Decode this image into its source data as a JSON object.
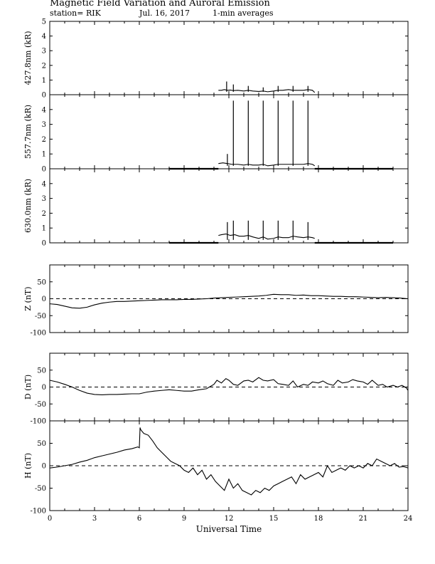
{
  "header": {
    "title": "Magnetic Field Variation and Auroral Emission",
    "station": "station= RIK",
    "date": "Jul. 16, 2017",
    "averaging": "1-min averages"
  },
  "chart_data": [
    {
      "type": "line",
      "ylabel": "427.8nm (kR)",
      "ylim": [
        0,
        5
      ],
      "yticks": [
        "0",
        "1",
        "2",
        "3",
        "4",
        "5"
      ],
      "dashed_zero": false,
      "series": [
        {
          "x": [
            11.3,
            11.5,
            11.7,
            11.9,
            12.1,
            12.3,
            12.6,
            13.0,
            13.3,
            13.6,
            14.0,
            14.3,
            14.6,
            15.0,
            15.3,
            15.6,
            16.0,
            16.3,
            16.6,
            17.0,
            17.3,
            17.6,
            17.75
          ],
          "y": [
            0.3,
            0.3,
            0.35,
            0.3,
            0.32,
            0.28,
            0.3,
            0.25,
            0.3,
            0.25,
            0.22,
            0.25,
            0.2,
            0.25,
            0.3,
            0.3,
            0.35,
            0.3,
            0.3,
            0.3,
            0.35,
            0.3,
            0.15
          ]
        }
      ],
      "spikes": [
        {
          "x": 11.85,
          "y": 0.9
        },
        {
          "x": 12.3,
          "y": 0.7
        },
        {
          "x": 13.3,
          "y": 0.6
        },
        {
          "x": 14.3,
          "y": 0.5
        },
        {
          "x": 15.3,
          "y": 0.6
        },
        {
          "x": 16.3,
          "y": 0.6
        },
        {
          "x": 17.3,
          "y": 0.6
        }
      ]
    },
    {
      "type": "line",
      "ylabel": "557.7nm (kR)",
      "ylim": [
        0,
        5
      ],
      "yticks": [
        "0",
        "1",
        "2",
        "3",
        "4"
      ],
      "dashed_zero": false,
      "flat_segments": [
        [
          8.0,
          11.3
        ],
        [
          17.75,
          23.0
        ]
      ],
      "series": [
        {
          "x": [
            11.3,
            11.6,
            11.9,
            12.2,
            12.6,
            13.0,
            13.3,
            13.6,
            14.0,
            14.3,
            14.6,
            15.0,
            15.3,
            15.6,
            16.0,
            16.3,
            16.6,
            17.0,
            17.3,
            17.6,
            17.75
          ],
          "y": [
            0.35,
            0.4,
            0.35,
            0.3,
            0.3,
            0.25,
            0.3,
            0.25,
            0.25,
            0.3,
            0.2,
            0.25,
            0.3,
            0.3,
            0.3,
            0.3,
            0.3,
            0.3,
            0.35,
            0.3,
            0.2
          ]
        }
      ],
      "spikes": [
        {
          "x": 11.9,
          "y": 1.0
        },
        {
          "x": 12.3,
          "y": 4.6
        },
        {
          "x": 13.3,
          "y": 4.6
        },
        {
          "x": 14.3,
          "y": 4.6
        },
        {
          "x": 15.3,
          "y": 4.6
        },
        {
          "x": 16.3,
          "y": 4.6
        },
        {
          "x": 17.3,
          "y": 4.6
        }
      ]
    },
    {
      "type": "line",
      "ylabel": "630.0nm (kR)",
      "ylim": [
        0,
        5
      ],
      "yticks": [
        "0",
        "1",
        "2",
        "3",
        "4"
      ],
      "dashed_zero": false,
      "flat_segments": [
        [
          8.0,
          11.3
        ],
        [
          17.75,
          23.0
        ]
      ],
      "series": [
        {
          "x": [
            11.3,
            11.5,
            11.8,
            12.1,
            12.4,
            12.7,
            13.0,
            13.3,
            13.6,
            14.0,
            14.3,
            14.6,
            15.0,
            15.3,
            15.6,
            16.0,
            16.3,
            16.6,
            17.0,
            17.3,
            17.6,
            17.75
          ],
          "y": [
            0.5,
            0.55,
            0.6,
            0.5,
            0.55,
            0.45,
            0.45,
            0.5,
            0.4,
            0.3,
            0.4,
            0.25,
            0.3,
            0.4,
            0.35,
            0.35,
            0.45,
            0.4,
            0.35,
            0.4,
            0.35,
            0.3
          ]
        }
      ],
      "spikes": [
        {
          "x": 11.9,
          "y": 1.4
        },
        {
          "x": 12.3,
          "y": 1.5
        },
        {
          "x": 13.3,
          "y": 1.5
        },
        {
          "x": 14.3,
          "y": 1.5
        },
        {
          "x": 15.3,
          "y": 1.5
        },
        {
          "x": 16.3,
          "y": 1.5
        },
        {
          "x": 17.3,
          "y": 1.4
        }
      ]
    },
    {
      "type": "line",
      "ylabel": "Z (nT)",
      "ylim": [
        -100,
        100
      ],
      "yticks": [
        "-100",
        "-50",
        "0",
        "50"
      ],
      "dashed_zero": true,
      "series": [
        {
          "x": [
            0,
            0.5,
            1,
            1.5,
            2,
            2.5,
            3,
            3.5,
            4,
            4.5,
            5,
            5.5,
            6,
            6.5,
            7,
            7.5,
            8,
            8.5,
            9,
            9.5,
            10,
            10.5,
            11,
            11.5,
            12,
            12.5,
            13,
            13.5,
            14,
            14.5,
            15,
            15.5,
            16,
            16.5,
            17,
            17.5,
            18,
            18.5,
            19,
            19.5,
            20,
            20.5,
            21,
            21.5,
            22,
            22.5,
            23,
            23.5,
            24
          ],
          "y": [
            -15,
            -17,
            -22,
            -27,
            -28,
            -25,
            -18,
            -13,
            -10,
            -8,
            -8,
            -7,
            -6,
            -5,
            -4,
            -3,
            -3,
            -3,
            -2,
            -2,
            -1,
            0,
            2,
            3,
            4,
            5,
            6,
            7,
            8,
            10,
            13,
            12,
            12,
            10,
            11,
            9,
            9,
            8,
            7,
            7,
            6,
            6,
            5,
            4,
            3,
            4,
            3,
            2,
            0
          ]
        }
      ]
    },
    {
      "type": "line",
      "ylabel": "D (nT)",
      "ylim": [
        -100,
        100
      ],
      "yticks": [
        "-100",
        "-50",
        "0",
        "50"
      ],
      "dashed_zero": true,
      "series": [
        {
          "x": [
            0,
            0.5,
            1,
            1.5,
            2,
            2.5,
            3,
            3.5,
            4,
            4.5,
            5,
            5.5,
            6,
            6.5,
            7,
            7.5,
            8,
            8.5,
            9,
            9.5,
            10,
            10.5,
            11,
            11.2,
            11.5,
            11.8,
            12,
            12.3,
            12.6,
            13,
            13.3,
            13.6,
            14,
            14.3,
            14.6,
            15,
            15.3,
            15.6,
            16,
            16.3,
            16.6,
            17,
            17.3,
            17.6,
            18,
            18.3,
            18.6,
            19,
            19.3,
            19.6,
            20,
            20.3,
            20.6,
            21,
            21.3,
            21.6,
            22,
            22.3,
            22.6,
            23,
            23.3,
            23.6,
            23.9,
            24
          ],
          "y": [
            20,
            15,
            8,
            0,
            -10,
            -18,
            -22,
            -23,
            -22,
            -22,
            -21,
            -20,
            -20,
            -15,
            -12,
            -10,
            -8,
            -10,
            -12,
            -12,
            -8,
            -5,
            8,
            20,
            12,
            25,
            20,
            8,
            5,
            18,
            20,
            15,
            28,
            20,
            18,
            22,
            10,
            8,
            5,
            18,
            0,
            8,
            5,
            15,
            12,
            18,
            10,
            5,
            20,
            12,
            15,
            22,
            18,
            15,
            8,
            20,
            5,
            8,
            0,
            5,
            0,
            5,
            -3,
            -10
          ]
        }
      ]
    },
    {
      "type": "line",
      "xlabel": "Universal Time",
      "ylabel": "H (nT)",
      "ylim": [
        -100,
        100
      ],
      "yticks": [
        "-100",
        "-50",
        "0",
        "50"
      ],
      "xlim": [
        0,
        24
      ],
      "xticks": [
        "0",
        "3",
        "6",
        "9",
        "12",
        "15",
        "18",
        "21",
        "24"
      ],
      "dashed_zero": true,
      "series": [
        {
          "x": [
            0,
            0.5,
            1,
            1.5,
            2,
            2.5,
            3,
            3.5,
            4,
            4.5,
            5,
            5.5,
            5.9,
            6.0,
            6.05,
            6.1,
            6.3,
            6.6,
            6.9,
            7.2,
            7.5,
            7.8,
            8.1,
            8.4,
            8.7,
            9.0,
            9.3,
            9.6,
            9.9,
            10.2,
            10.5,
            10.8,
            11.1,
            11.4,
            11.7,
            12.0,
            12.3,
            12.6,
            12.9,
            13.2,
            13.5,
            13.8,
            14.1,
            14.4,
            14.7,
            15.0,
            15.3,
            15.6,
            15.9,
            16.2,
            16.5,
            16.8,
            17.1,
            17.4,
            17.7,
            18.0,
            18.3,
            18.6,
            18.9,
            19.2,
            19.5,
            19.8,
            20.1,
            20.4,
            20.7,
            21.0,
            21.3,
            21.6,
            21.9,
            22.2,
            22.5,
            22.8,
            23.1,
            23.4,
            23.7,
            24.0
          ],
          "y": [
            -5,
            -3,
            0,
            3,
            8,
            12,
            18,
            22,
            26,
            30,
            35,
            38,
            42,
            40,
            85,
            80,
            72,
            68,
            55,
            40,
            30,
            20,
            10,
            5,
            0,
            -10,
            -15,
            -5,
            -20,
            -10,
            -30,
            -20,
            -35,
            -45,
            -55,
            -30,
            -50,
            -40,
            -55,
            -60,
            -65,
            -55,
            -60,
            -50,
            -55,
            -45,
            -40,
            -35,
            -30,
            -25,
            -40,
            -20,
            -30,
            -25,
            -20,
            -15,
            -25,
            0,
            -15,
            -10,
            -5,
            -10,
            0,
            -5,
            0,
            -5,
            5,
            0,
            15,
            10,
            5,
            0,
            5,
            -3,
            -2,
            -5
          ]
        }
      ]
    }
  ]
}
